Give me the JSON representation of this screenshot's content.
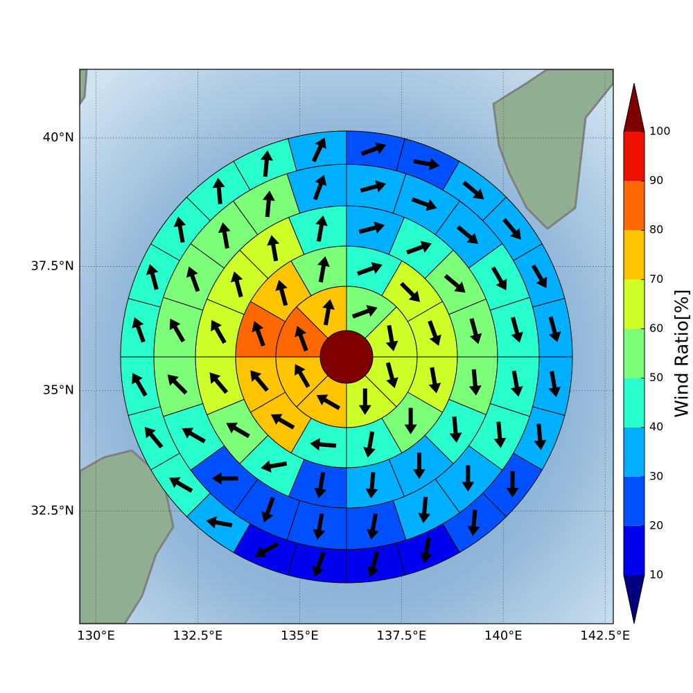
{
  "chart_data": {
    "type": "polar_sector_map",
    "xlim": [
      129.6,
      142.7
    ],
    "ylim": [
      30.1,
      41.3
    ],
    "xticks": [
      {
        "value": 130,
        "label": "130°E"
      },
      {
        "value": 132.5,
        "label": "132.5°E"
      },
      {
        "value": 135,
        "label": "135°E"
      },
      {
        "value": 137.5,
        "label": "137.5°E"
      },
      {
        "value": 140,
        "label": "140°E"
      },
      {
        "value": 142.5,
        "label": "142.5°E"
      }
    ],
    "yticks": [
      {
        "value": 32.5,
        "label": "32.5°N"
      },
      {
        "value": 35,
        "label": "35°N"
      },
      {
        "value": 37.5,
        "label": "37.5°N"
      },
      {
        "value": 40,
        "label": "40°N"
      }
    ],
    "grid": true,
    "center_value": 100,
    "rings": [
      {
        "values": [
          55,
          65,
          65,
          65,
          75,
          75,
          85,
          75
        ],
        "directions": [
          70,
          170,
          165,
          180,
          300,
          330,
          340,
          10
        ]
      },
      {
        "values": [
          45,
          65,
          65,
          65,
          55,
          45,
          45,
          75,
          75,
          85,
          75,
          55
        ],
        "directions": [
          70,
          135,
          160,
          170,
          180,
          190,
          275,
          300,
          320,
          340,
          345,
          10
        ]
      },
      {
        "values": [
          35,
          45,
          55,
          55,
          55,
          45,
          35,
          35,
          25,
          45,
          55,
          65,
          65,
          65,
          65,
          45
        ],
        "directions": [
          75,
          70,
          130,
          165,
          175,
          175,
          180,
          185,
          190,
          260,
          300,
          320,
          330,
          345,
          350,
          10
        ]
      },
      {
        "values": [
          35,
          35,
          35,
          45,
          45,
          45,
          45,
          35,
          35,
          25,
          25,
          25,
          25,
          45,
          55,
          55,
          55,
          55,
          55,
          35
        ],
        "directions": [
          75,
          110,
          130,
          150,
          165,
          170,
          175,
          180,
          185,
          190,
          190,
          200,
          270,
          300,
          315,
          330,
          340,
          350,
          5,
          20
        ]
      },
      {
        "values": [
          25,
          25,
          35,
          35,
          35,
          35,
          35,
          35,
          25,
          25,
          15,
          15,
          15,
          15,
          35,
          45,
          45,
          45,
          45,
          45,
          45,
          45,
          45,
          35
        ],
        "directions": [
          70,
          100,
          130,
          140,
          150,
          165,
          170,
          175,
          180,
          185,
          190,
          195,
          200,
          240,
          280,
          300,
          320,
          330,
          340,
          345,
          350,
          355,
          5,
          25
        ]
      }
    ],
    "colorbar": {
      "label": "Wind Ratio[%]",
      "ticks": [
        10,
        20,
        30,
        40,
        50,
        60,
        70,
        80,
        90,
        100
      ],
      "colors": [
        "#0000f0",
        "#0050ff",
        "#00b0ff",
        "#29ffce",
        "#7dff7a",
        "#ceff29",
        "#ffc400",
        "#ff6800",
        "#f01000"
      ],
      "under_color": "#000080",
      "over_color": "#800000"
    }
  }
}
